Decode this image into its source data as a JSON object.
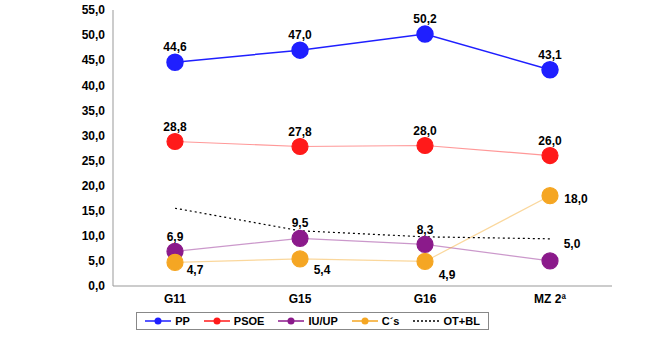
{
  "chart_data": {
    "type": "line",
    "categories": [
      "G11",
      "G15",
      "G16",
      "MZ 2ª"
    ],
    "ylim": [
      0,
      55
    ],
    "yticks": [
      {
        "value": 0,
        "label": "0,0"
      },
      {
        "value": 5,
        "label": "5,0"
      },
      {
        "value": 10,
        "label": "10,0"
      },
      {
        "value": 15,
        "label": "15,0"
      },
      {
        "value": 20,
        "label": "20,0"
      },
      {
        "value": 25,
        "label": "25,0"
      },
      {
        "value": 30,
        "label": "30,0"
      },
      {
        "value": 35,
        "label": "35,0"
      },
      {
        "value": 40,
        "label": "40,0"
      },
      {
        "value": 45,
        "label": "45,0"
      },
      {
        "value": 50,
        "label": "50,0"
      },
      {
        "value": 55,
        "label": "55,0"
      }
    ],
    "grid": false,
    "legend": "bottom",
    "series": [
      {
        "name": "PP",
        "color": "#1f1fff",
        "marker": "circle",
        "line_style": "solid",
        "data_labels": true,
        "values": [
          44.6,
          47.0,
          50.2,
          43.1
        ],
        "value_labels": [
          "44,6",
          "47,0",
          "50,2",
          "43,1"
        ]
      },
      {
        "name": "PSOE",
        "color": "#ff1a1a",
        "marker": "circle",
        "line_style": "solid",
        "data_labels": true,
        "values": [
          28.8,
          27.8,
          28.0,
          26.0
        ],
        "value_labels": [
          "28,8",
          "27,8",
          "28,0",
          "26,0"
        ]
      },
      {
        "name": "IU/UP",
        "color": "#8b1a8b",
        "marker": "circle",
        "line_style": "solid",
        "data_labels": true,
        "values": [
          6.9,
          9.5,
          8.3,
          5.0
        ],
        "value_labels": [
          "6,9",
          "9,5",
          "8,3",
          "5,0"
        ]
      },
      {
        "name": "C´s",
        "color": "#f5a623",
        "marker": "circle",
        "line_style": "solid",
        "data_labels": true,
        "values": [
          4.7,
          5.4,
          4.9,
          18.0
        ],
        "value_labels": [
          "4,7",
          "5,4",
          "4,9",
          "18,0"
        ]
      },
      {
        "name": "OT+BL",
        "color": "#000000",
        "marker": "none",
        "line_style": "dotted",
        "data_labels": false,
        "values": [
          15.5,
          11.0,
          9.8,
          9.4
        ]
      }
    ]
  }
}
